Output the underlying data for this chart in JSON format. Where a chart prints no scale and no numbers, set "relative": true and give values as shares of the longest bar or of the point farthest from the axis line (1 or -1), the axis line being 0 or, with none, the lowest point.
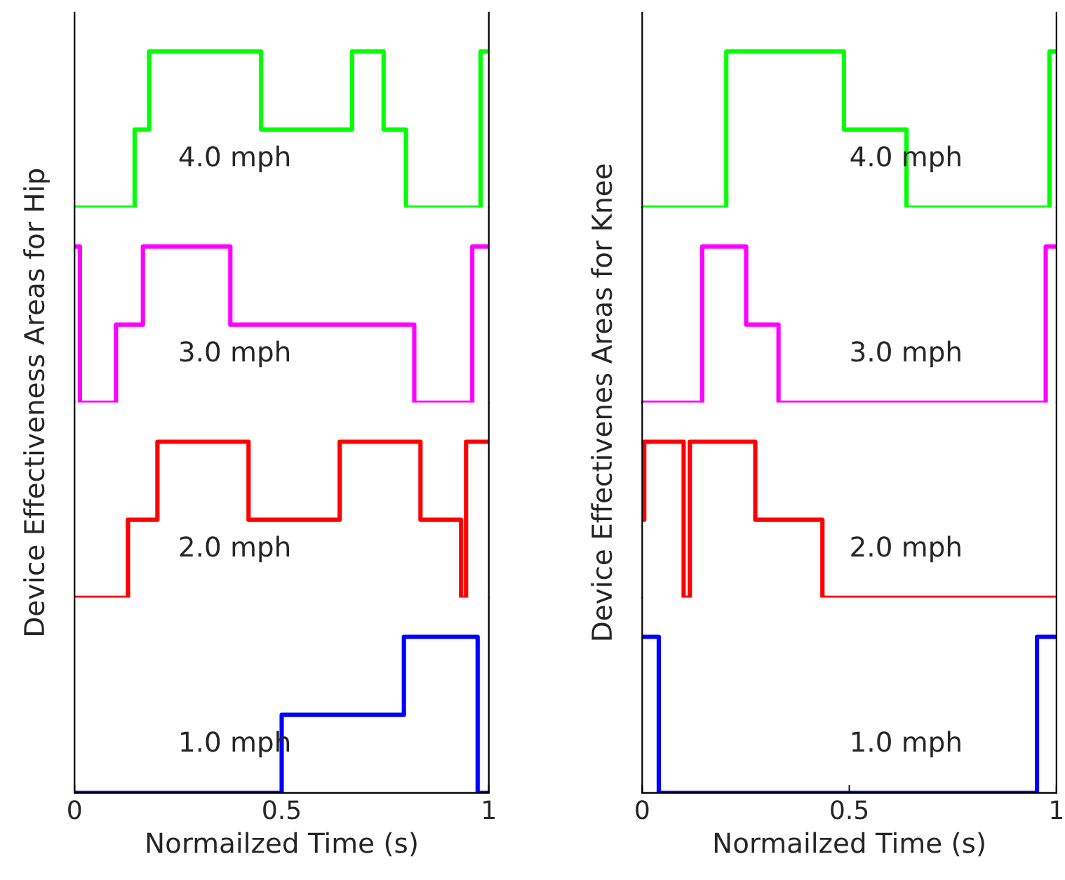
{
  "chart_data": [
    {
      "type": "step",
      "relative": true,
      "ylabel": "Device Effectiveness Areas for Hip",
      "annotations": [
        "4.0 mph"
      ],
      "xlim": [
        0,
        1
      ],
      "xticks": [
        0,
        0.5,
        1
      ],
      "tick_labels": false,
      "x": [
        0,
        0.145,
        0.18,
        0.45,
        0.67,
        0.746,
        0.8,
        0.98,
        1
      ],
      "values": [
        0,
        0.5,
        1,
        0.5,
        1,
        0.5,
        0,
        1,
        1
      ],
      "color": "#00ff00"
    },
    {
      "type": "step",
      "relative": true,
      "annotations": [
        "3.0 mph"
      ],
      "xlim": [
        0,
        1
      ],
      "xticks": [
        0,
        0.5,
        1
      ],
      "tick_labels": false,
      "x": [
        0,
        0.013,
        0.1,
        0.165,
        0.376,
        0.82,
        0.96,
        1
      ],
      "values": [
        1,
        0,
        0.5,
        1,
        0.5,
        0,
        1,
        1
      ],
      "color": "#ff00ff"
    },
    {
      "type": "step",
      "relative": true,
      "annotations": [
        "2.0 mph"
      ],
      "xlim": [
        0,
        1
      ],
      "xticks": [
        0,
        0.5,
        1
      ],
      "tick_labels": false,
      "x": [
        0,
        0.129,
        0.2,
        0.42,
        0.64,
        0.835,
        0.933,
        0.945,
        1
      ],
      "values": [
        0,
        0.5,
        1,
        0.5,
        1,
        0.5,
        0,
        1,
        1
      ],
      "color": "#ff0000"
    },
    {
      "type": "step",
      "relative": true,
      "xlabel": "Normailzed Time (s)",
      "annotations": [
        "1.0 mph"
      ],
      "xlim": [
        0,
        1
      ],
      "xticks": [
        0,
        0.5,
        1
      ],
      "tick_labels": "x",
      "x": [
        0,
        0.5,
        0.795,
        0.973,
        1
      ],
      "values": [
        0,
        0.5,
        1,
        0,
        0
      ],
      "color": "#0000ff"
    },
    {
      "type": "step",
      "relative": true,
      "ylabel": "Device Effectivenes Areas for Knee",
      "annotations": [
        "4.0 mph"
      ],
      "xlim": [
        0,
        1
      ],
      "xticks": [
        0,
        0.5,
        1
      ],
      "tick_labels": false,
      "x": [
        0,
        0.203,
        0.487,
        0.638,
        0.983,
        1
      ],
      "values": [
        0,
        1,
        0.5,
        0,
        1,
        1
      ],
      "color": "#00ff00"
    },
    {
      "type": "step",
      "relative": true,
      "annotations": [
        "3.0 mph"
      ],
      "xlim": [
        0,
        1
      ],
      "xticks": [
        0,
        0.5,
        1
      ],
      "tick_labels": false,
      "x": [
        0,
        0.145,
        0.251,
        0.329,
        0.974,
        1
      ],
      "values": [
        0,
        1,
        0.5,
        0,
        1,
        1
      ],
      "color": "#ff00ff"
    },
    {
      "type": "step",
      "relative": true,
      "annotations": [
        "2.0 mph"
      ],
      "xlim": [
        0,
        1
      ],
      "xticks": [
        0,
        0.5,
        1
      ],
      "tick_labels": false,
      "x": [
        0,
        0.005,
        0.1,
        0.115,
        0.273,
        0.435,
        1
      ],
      "values": [
        0.5,
        1,
        0,
        1,
        0.5,
        0,
        0
      ],
      "color": "#ff0000"
    },
    {
      "type": "step",
      "relative": true,
      "xlabel": "Normailzed Time (s)",
      "annotations": [
        "1.0 mph"
      ],
      "xlim": [
        0,
        1
      ],
      "xticks": [
        0,
        0.5,
        1
      ],
      "tick_labels": "x",
      "x": [
        0,
        0.04,
        0.953,
        1
      ],
      "values": [
        1,
        0,
        1,
        1
      ],
      "color": "#0000ff"
    }
  ]
}
